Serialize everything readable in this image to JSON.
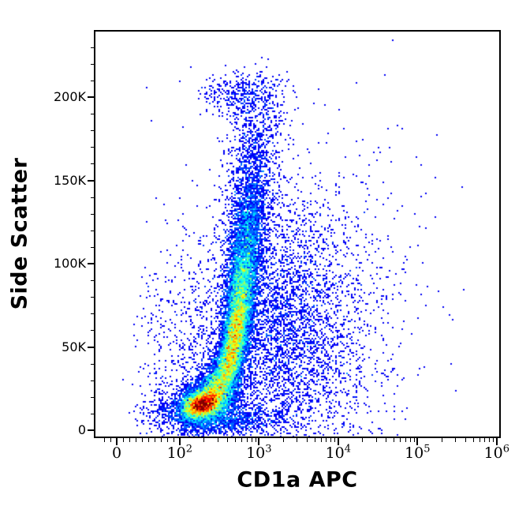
{
  "chart_data": {
    "type": "scatter",
    "subtype": "flow-cytometry-pseudocolor-density-plot",
    "title": "",
    "xlabel": "CD1a APC",
    "ylabel": "Side Scatter",
    "x_scale": {
      "type": "logicle",
      "linear_zone_max": 100,
      "log_decades_shown": [
        2,
        6
      ],
      "range": [
        -30,
        1000000
      ]
    },
    "y_scale": {
      "type": "linear",
      "range": [
        -3800,
        239000
      ]
    },
    "x_ticks": [
      {
        "value": 0,
        "label": "0"
      },
      {
        "value": 100,
        "label": "10^2"
      },
      {
        "value": 1000,
        "label": "10^3"
      },
      {
        "value": 10000,
        "label": "10^4"
      },
      {
        "value": 100000,
        "label": "10^5"
      },
      {
        "value": 1000000,
        "label": "10^6"
      }
    ],
    "y_ticks": [
      {
        "value": 0,
        "label": "0"
      },
      {
        "value": 50000,
        "label": "50K"
      },
      {
        "value": 100000,
        "label": "100K"
      },
      {
        "value": 150000,
        "label": "150K"
      },
      {
        "value": 200000,
        "label": "200K"
      }
    ],
    "y_minor_tick_step": 10000,
    "grid": false,
    "legend": false,
    "colormap": {
      "name": "jet-density",
      "meaning": "event density: blue = sparse, green/yellow = medium, red = dense",
      "stops": [
        "#0000CC",
        "#0033FF",
        "#00CCFF",
        "#00FF66",
        "#CCFF00",
        "#FF9900",
        "#FF0000"
      ]
    },
    "populations": [
      {
        "name": "low-ssc-core",
        "x_median": 195,
        "x_sigma_decades": 0.13,
        "y_mean": 15500,
        "y_sigma": 4200,
        "corr": 0.25,
        "n": 5200
      },
      {
        "name": "low-ssc-halo",
        "x_median": 215,
        "x_sigma_decades": 0.24,
        "y_mean": 17000,
        "y_sigma": 8000,
        "corr": 0.3,
        "n": 2600
      },
      {
        "name": "main-streak-1",
        "x_median": 300,
        "x_sigma_decades": 0.1,
        "y_mean": 27000,
        "y_sigma": 6000,
        "corr": 0.25,
        "n": 2000
      },
      {
        "name": "main-streak-2",
        "x_median": 420,
        "x_sigma_decades": 0.085,
        "y_mean": 40000,
        "y_sigma": 8000,
        "corr": 0.25,
        "n": 2600
      },
      {
        "name": "main-streak-3",
        "x_median": 500,
        "x_sigma_decades": 0.085,
        "y_mean": 55000,
        "y_sigma": 9000,
        "corr": 0.25,
        "n": 2800
      },
      {
        "name": "main-streak-4",
        "x_median": 560,
        "x_sigma_decades": 0.085,
        "y_mean": 70000,
        "y_sigma": 10000,
        "corr": 0.25,
        "n": 2600
      },
      {
        "name": "main-streak-5",
        "x_median": 620,
        "x_sigma_decades": 0.1,
        "y_mean": 88000,
        "y_sigma": 11000,
        "corr": 0.25,
        "n": 2200
      },
      {
        "name": "main-streak-6",
        "x_median": 680,
        "x_sigma_decades": 0.11,
        "y_mean": 107000,
        "y_sigma": 12000,
        "corr": 0.2,
        "n": 1500
      },
      {
        "name": "main-streak-7",
        "x_median": 740,
        "x_sigma_decades": 0.12,
        "y_mean": 127000,
        "y_sigma": 13000,
        "corr": 0.2,
        "n": 950
      },
      {
        "name": "main-streak-8",
        "x_median": 800,
        "x_sigma_decades": 0.14,
        "y_mean": 148000,
        "y_sigma": 14000,
        "corr": 0.15,
        "n": 550
      },
      {
        "name": "main-streak-9",
        "x_median": 870,
        "x_sigma_decades": 0.16,
        "y_mean": 170000,
        "y_sigma": 14000,
        "corr": 0.1,
        "n": 330
      },
      {
        "name": "top-band",
        "x_median": 620,
        "x_sigma_decades": 0.28,
        "y_mean": 201000,
        "y_sigma": 7000,
        "corr": 0.0,
        "n": 380
      },
      {
        "name": "top-sparse",
        "x_median": 950,
        "x_sigma_decades": 0.22,
        "y_mean": 188000,
        "y_sigma": 14000,
        "corr": 0.0,
        "n": 200
      },
      {
        "name": "right-diffuse",
        "x_median": 1800,
        "x_sigma_decades": 0.5,
        "y_mean": 60000,
        "y_sigma": 38000,
        "corr": -0.05,
        "n": 3800
      },
      {
        "name": "far-right-sparse",
        "x_median": 6000,
        "x_sigma_decades": 0.55,
        "y_mean": 70000,
        "y_sigma": 45000,
        "corr": 0.0,
        "n": 650
      },
      {
        "name": "far-right-singles",
        "x_median": 20000,
        "x_sigma_decades": 0.6,
        "y_mean": 90000,
        "y_sigma": 50000,
        "corr": 0.0,
        "n": 120
      },
      {
        "name": "left-sparse",
        "x_median": 150,
        "x_sigma_decades": 0.3,
        "y_mean": 40000,
        "y_sigma": 35000,
        "corr": 0.0,
        "n": 650
      },
      {
        "name": "bottom-band",
        "x_median": 350,
        "x_sigma_decades": 0.4,
        "y_mean": 6000,
        "y_sigma": 4500,
        "corr": 0.0,
        "n": 950
      }
    ]
  }
}
